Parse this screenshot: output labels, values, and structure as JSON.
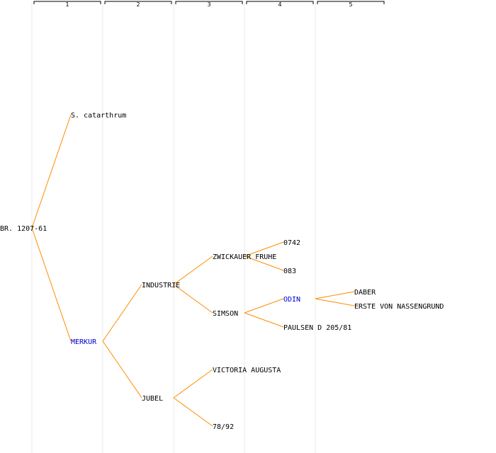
{
  "columns": [
    "1",
    "2",
    "3",
    "4",
    "5"
  ],
  "colors": {
    "edge": "#ff8c00",
    "highlight": "#0000cc",
    "text": "#000000",
    "column_line": "#ebebeb"
  },
  "nodes": [
    {
      "id": "br",
      "label": "BR. 1207-61",
      "level": 0
    },
    {
      "id": "scat",
      "label": "S. catarthrum",
      "level": 1,
      "parent": "br"
    },
    {
      "id": "merkur",
      "label": "MERKUR",
      "level": 1,
      "parent": "br",
      "highlight": true
    },
    {
      "id": "industrie",
      "label": "INDUSTRIE",
      "level": 2,
      "parent": "merkur"
    },
    {
      "id": "jubel",
      "label": "JUBEL",
      "level": 2,
      "parent": "merkur"
    },
    {
      "id": "zwickauer",
      "label": "ZWICKAUER FRUHE",
      "level": 3,
      "parent": "industrie"
    },
    {
      "id": "simson",
      "label": "SIMSON",
      "level": 3,
      "parent": "industrie"
    },
    {
      "id": "victoria",
      "label": "VICTORIA AUGUSTA",
      "level": 3,
      "parent": "jubel"
    },
    {
      "id": "n7892",
      "label": "78/92",
      "level": 3,
      "parent": "jubel"
    },
    {
      "id": "n0742",
      "label": "0742",
      "level": 4,
      "parent": "zwickauer"
    },
    {
      "id": "n083",
      "label": "083",
      "level": 4,
      "parent": "zwickauer"
    },
    {
      "id": "odin",
      "label": "ODIN",
      "level": 4,
      "parent": "simson",
      "highlight": true
    },
    {
      "id": "paulsen",
      "label": "PAULSEN D 205/81",
      "level": 4,
      "parent": "simson"
    },
    {
      "id": "daber",
      "label": "DABER",
      "level": 5,
      "parent": "odin"
    },
    {
      "id": "erste",
      "label": "ERSTE VON NASSENGRUND",
      "level": 5,
      "parent": "odin"
    }
  ]
}
